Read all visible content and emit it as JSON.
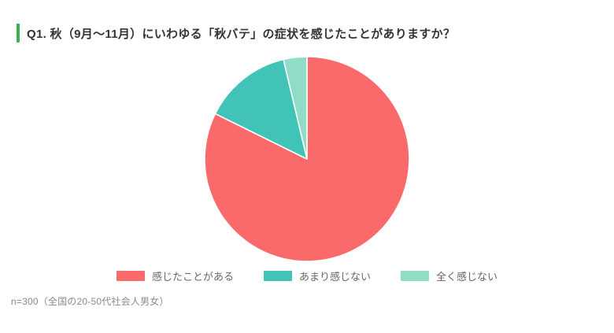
{
  "header": {
    "title": "Q1. 秋（9月〜11月）にいわゆる「秋バテ」の症状を感じたことがありますか？",
    "accent_color": "#3CB24F"
  },
  "chart_data": {
    "type": "pie",
    "title": "",
    "categories": [
      "感じたことがある",
      "あまり感じない",
      "全く感じない"
    ],
    "values": [
      82.3,
      14.0,
      3.7
    ],
    "colors": [
      "#FA6A6B",
      "#42C3B7",
      "#8FDDC7"
    ],
    "start_angle_deg": 0,
    "direction": "clockwise",
    "slice_separator_color": "#FFFFFF",
    "data_labels_shown": false,
    "legend_position": "bottom"
  },
  "footnote": {
    "text": "n=300（全国の20-50代社会人男女）"
  }
}
